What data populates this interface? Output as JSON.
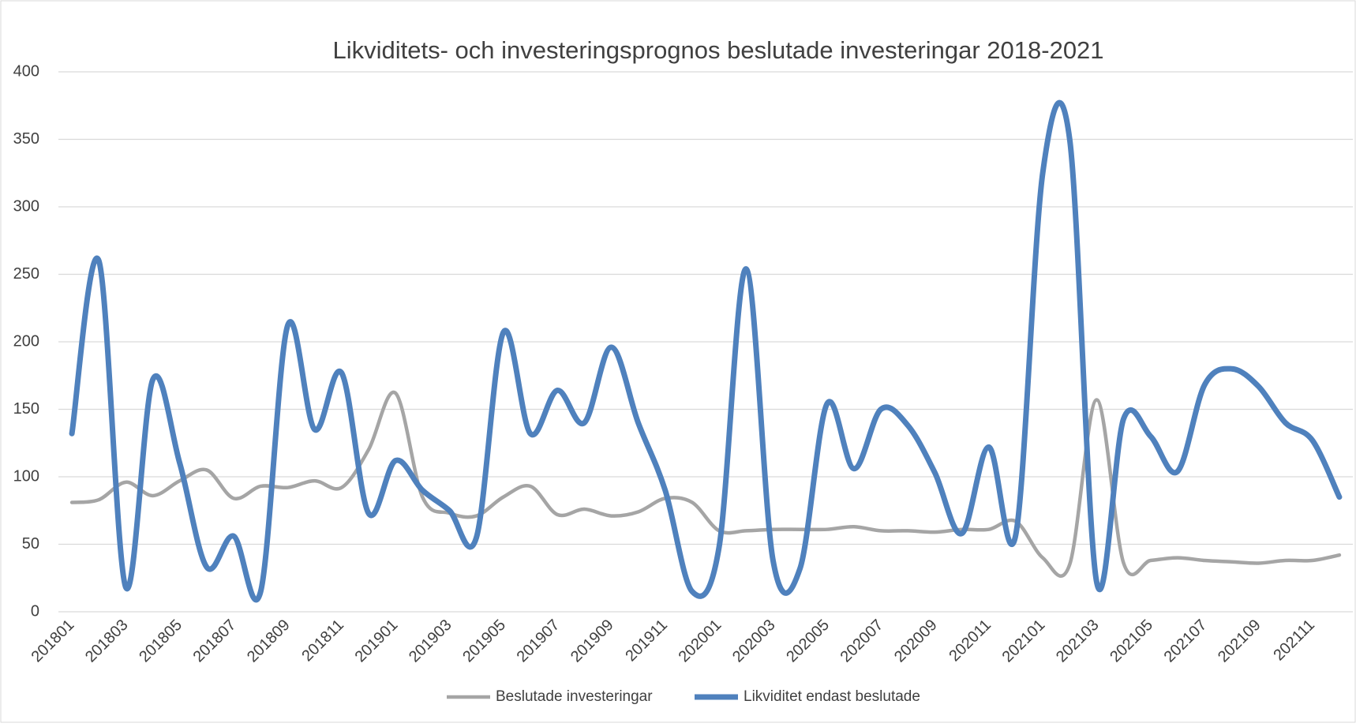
{
  "chart_data": {
    "type": "line",
    "title": "Likviditets- och investeringsprognos beslutade investeringar 2018-2021",
    "categories": [
      "201801",
      null,
      "201803",
      null,
      "201805",
      null,
      "201807",
      null,
      "201809",
      null,
      "201811",
      null,
      "201901",
      null,
      "201903",
      null,
      "201905",
      null,
      "201907",
      null,
      "201909",
      null,
      "201911",
      null,
      "202001",
      null,
      "202003",
      null,
      "202005",
      null,
      "202007",
      null,
      "202009",
      null,
      "202011",
      null,
      "202101",
      null,
      "202103",
      null,
      "202105",
      null,
      "202107",
      null,
      "202109",
      null,
      "202111",
      null
    ],
    "series": [
      {
        "name": "Beslutade investeringar",
        "color": "#a5a5a5",
        "values": [
          81,
          83,
          96,
          86,
          97,
          105,
          84,
          93,
          92,
          97,
          92,
          120,
          162,
          85,
          73,
          71,
          85,
          93,
          72,
          76,
          71,
          74,
          84,
          81,
          60,
          60,
          61,
          61,
          61,
          63,
          60,
          60,
          59,
          61,
          61,
          67,
          40,
          35,
          157,
          36,
          38,
          40,
          38,
          37,
          36,
          38,
          38,
          42
        ]
      },
      {
        "name": "Likviditet endast beslutade",
        "color": "#4f81bd",
        "values": [
          132,
          260,
          18,
          172,
          110,
          33,
          56,
          15,
          212,
          135,
          177,
          73,
          112,
          90,
          75,
          55,
          207,
          132,
          164,
          140,
          196,
          140,
          90,
          15,
          48,
          254,
          38,
          32,
          154,
          106,
          150,
          138,
          103,
          58,
          122,
          57,
          325,
          350,
          22,
          143,
          130,
          104,
          168,
          180,
          167,
          140,
          127,
          85
        ]
      }
    ],
    "ylim": [
      0,
      400
    ],
    "yticks": [
      0,
      50,
      100,
      150,
      200,
      250,
      300,
      350,
      400
    ],
    "grid": true,
    "legend": "bottom"
  }
}
